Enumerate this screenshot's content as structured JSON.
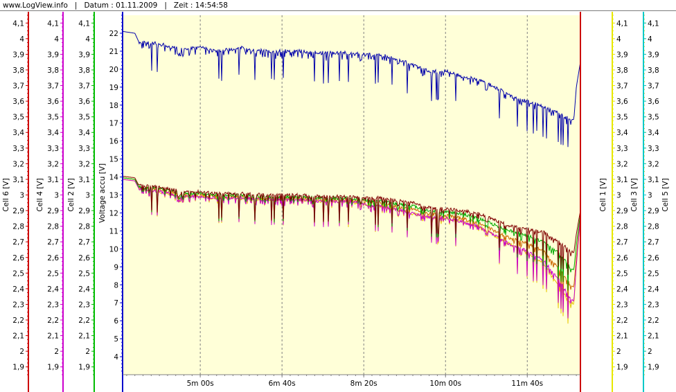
{
  "header": {
    "site": "www.LogView.info",
    "sep": "|",
    "date": "Datum : 01.11.2009",
    "time": "Zeit : 14:54:58"
  },
  "colors": {
    "plot_bg": "#ffffd8",
    "voltage_axis": "#0000cc",
    "cell6": "#cc0000",
    "cell4": "#cc00cc",
    "cell2": "#00bb00",
    "cell1": "#e8e800",
    "cell3": "#cccc00",
    "cell5": "#00c8c8",
    "voltage_line": "#0000aa",
    "cell_series": [
      "#800000",
      "#00aa00",
      "#cc00cc",
      "#e8c800",
      "#cc6600"
    ]
  },
  "chart_data": {
    "type": "line",
    "x_ticks": [
      "5m 00s",
      "6m 40s",
      "8m 20s",
      "10m 00s",
      "11m 40s"
    ],
    "x_tick_seconds": [
      300,
      400,
      500,
      600,
      700
    ],
    "x_range_seconds": [
      205,
      765
    ],
    "grid": true,
    "left_axis": {
      "label": "Voltage accu [V]",
      "ylim": [
        3.0,
        23.0
      ],
      "ticks": [
        "4",
        "5",
        "6",
        "7",
        "8",
        "9",
        "10",
        "11",
        "12",
        "13",
        "14",
        "15",
        "16",
        "17",
        "18",
        "19",
        "20",
        "21",
        "22"
      ]
    },
    "cell_axes": [
      {
        "label": "Cell 6 [V]",
        "side": "left"
      },
      {
        "label": "Cell 4 [V]",
        "side": "left"
      },
      {
        "label": "Cell 2 [V]",
        "side": "left"
      },
      {
        "label": "Cell 1 [V]",
        "side": "right"
      },
      {
        "label": "Cell 3 [V]",
        "side": "right"
      },
      {
        "label": "Cell 5 [V]",
        "side": "right"
      }
    ],
    "cell_ylim": [
      1.85,
      4.15
    ],
    "cell_ticks": [
      "4,1",
      "4",
      "3,9",
      "3,8",
      "3,7",
      "3,6",
      "3,5",
      "3,4",
      "3,3",
      "3,2",
      "3,1",
      "3",
      "2,9",
      "2,8",
      "2,7",
      "2,6",
      "2,5",
      "2,4",
      "2,3",
      "2,2",
      "2,1",
      "2",
      "1,9"
    ],
    "series": [
      {
        "axis": "voltage",
        "x": [
          205,
          220,
          225,
          250,
          280,
          300,
          320,
          350,
          380,
          400,
          420,
          450,
          480,
          500,
          520,
          545,
          560,
          580,
          600,
          620,
          640,
          660,
          680,
          700,
          720,
          740,
          752,
          757,
          760,
          765
        ],
        "y": [
          22.1,
          22.0,
          21.5,
          21.4,
          21.1,
          21.2,
          21.0,
          21.2,
          21.0,
          21.0,
          21.0,
          20.9,
          20.9,
          20.8,
          20.8,
          20.5,
          20.2,
          19.9,
          19.9,
          19.6,
          19.4,
          19.0,
          18.5,
          18.2,
          17.9,
          17.5,
          17.2,
          17.2,
          19.0,
          20.4
        ]
      },
      {
        "axis": "cell",
        "x": [
          205,
          220,
          225,
          250,
          280,
          300,
          320,
          350,
          380,
          400,
          420,
          450,
          480,
          500,
          520,
          545,
          560,
          580,
          600,
          620,
          640,
          660,
          680,
          700,
          720,
          740,
          752,
          757,
          760,
          765
        ],
        "y": [
          3.12,
          3.11,
          3.06,
          3.05,
          3.02,
          3.02,
          3.01,
          3.01,
          3.0,
          3.0,
          3.0,
          2.99,
          2.99,
          2.98,
          2.98,
          2.96,
          2.95,
          2.92,
          2.91,
          2.9,
          2.88,
          2.84,
          2.8,
          2.78,
          2.76,
          2.7,
          2.64,
          2.63,
          2.75,
          2.9
        ]
      },
      {
        "axis": "cell",
        "x": [
          205,
          220,
          225,
          250,
          280,
          300,
          320,
          350,
          380,
          400,
          420,
          450,
          480,
          500,
          520,
          545,
          560,
          580,
          600,
          620,
          640,
          660,
          680,
          700,
          720,
          740,
          752,
          757,
          760,
          765
        ],
        "y": [
          3.11,
          3.1,
          3.05,
          3.04,
          3.01,
          3.01,
          3.0,
          3.0,
          2.99,
          2.99,
          2.99,
          2.98,
          2.98,
          2.97,
          2.96,
          2.94,
          2.93,
          2.9,
          2.89,
          2.88,
          2.85,
          2.81,
          2.77,
          2.74,
          2.7,
          2.62,
          2.54,
          2.52,
          2.68,
          2.88
        ]
      },
      {
        "axis": "cell",
        "x": [
          205,
          220,
          225,
          250,
          280,
          300,
          320,
          350,
          380,
          400,
          420,
          450,
          480,
          500,
          520,
          545,
          560,
          580,
          600,
          620,
          640,
          660,
          680,
          700,
          720,
          740,
          752,
          757,
          760,
          765
        ],
        "y": [
          3.1,
          3.09,
          3.04,
          3.02,
          2.99,
          2.99,
          2.98,
          2.98,
          2.97,
          2.97,
          2.97,
          2.96,
          2.96,
          2.94,
          2.93,
          2.9,
          2.88,
          2.86,
          2.85,
          2.83,
          2.8,
          2.74,
          2.68,
          2.64,
          2.58,
          2.45,
          2.34,
          2.32,
          2.55,
          2.86
        ]
      },
      {
        "axis": "cell",
        "x": [
          205,
          220,
          225,
          250,
          280,
          300,
          320,
          350,
          380,
          400,
          420,
          450,
          480,
          500,
          520,
          545,
          560,
          580,
          600,
          620,
          640,
          660,
          680,
          700,
          720,
          740,
          752,
          757,
          760,
          765
        ],
        "y": [
          3.1,
          3.09,
          3.04,
          3.02,
          2.99,
          2.99,
          2.98,
          2.98,
          2.97,
          2.97,
          2.97,
          2.96,
          2.96,
          2.94,
          2.93,
          2.9,
          2.88,
          2.86,
          2.85,
          2.83,
          2.8,
          2.74,
          2.68,
          2.63,
          2.56,
          2.42,
          2.31,
          2.3,
          2.55,
          2.86
        ]
      },
      {
        "axis": "cell",
        "x": [
          205,
          220,
          225,
          250,
          280,
          300,
          320,
          350,
          380,
          400,
          420,
          450,
          480,
          500,
          520,
          545,
          560,
          580,
          600,
          620,
          640,
          660,
          680,
          700,
          720,
          740,
          752,
          757,
          760,
          765
        ],
        "y": [
          3.11,
          3.1,
          3.05,
          3.03,
          3.0,
          3.0,
          2.99,
          2.99,
          2.98,
          2.98,
          2.98,
          2.97,
          2.97,
          2.96,
          2.95,
          2.92,
          2.91,
          2.88,
          2.87,
          2.85,
          2.82,
          2.77,
          2.72,
          2.69,
          2.64,
          2.52,
          2.43,
          2.41,
          2.6,
          2.87
        ]
      }
    ]
  }
}
